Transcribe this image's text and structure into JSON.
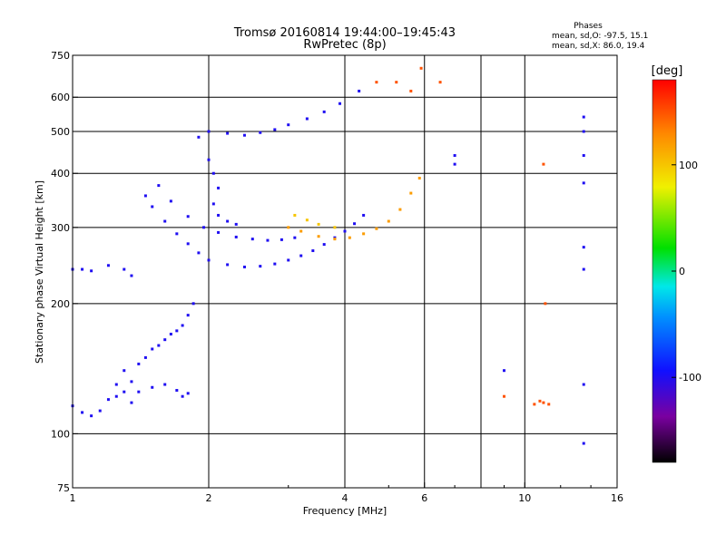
{
  "title": {
    "line1": "Tromsø 20160814 19:44:00–19:45:43",
    "line2": "RwPretec (8p)"
  },
  "stats": {
    "heading": "Phases",
    "o_line": "mean, sd,O: -97.5, 15.1",
    "x_line": "mean, sd,X:  86.0, 19.4"
  },
  "colorbar": {
    "label": "[deg]",
    "range": [
      -180,
      180
    ],
    "tick_labels": [
      "100",
      "0",
      "-100"
    ],
    "tick_values": [
      100,
      0,
      -100
    ]
  },
  "chart_data": {
    "type": "scatter",
    "xlabel": "Frequency [MHz]",
    "ylabel": "Stationary phase Virtual Height [km]",
    "xscale": "log",
    "yscale": "log",
    "xlim": [
      1,
      16
    ],
    "ylim": [
      75,
      750
    ],
    "x_ticks": [
      1,
      2,
      4,
      6,
      10,
      16
    ],
    "x_tick_labels": [
      "1",
      "2",
      "4",
      "6",
      "10",
      "16"
    ],
    "x_gridlines": [
      2,
      4,
      6,
      8,
      10
    ],
    "y_ticks": [
      75,
      100,
      200,
      300,
      400,
      500,
      600,
      750
    ],
    "y_tick_labels": [
      "75",
      "100",
      "200",
      "300",
      "400",
      "500",
      "600",
      "750"
    ],
    "y_gridlines": [
      100,
      200,
      300,
      400,
      500,
      600
    ],
    "grid": true,
    "color_encodes": "phase [deg]",
    "series": [
      {
        "phase": -100,
        "points": [
          [
            1.0,
            240
          ],
          [
            1.05,
            240
          ],
          [
            1.1,
            238
          ],
          [
            1.2,
            245
          ],
          [
            1.3,
            240
          ],
          [
            1.35,
            232
          ]
        ]
      },
      {
        "phase": -100,
        "points": [
          [
            1.0,
            116
          ],
          [
            1.05,
            112
          ],
          [
            1.1,
            110
          ],
          [
            1.15,
            113
          ],
          [
            1.2,
            120
          ],
          [
            1.25,
            130
          ],
          [
            1.3,
            140
          ],
          [
            1.35,
            132
          ],
          [
            1.4,
            145
          ],
          [
            1.45,
            150
          ],
          [
            1.5,
            157
          ],
          [
            1.55,
            160
          ],
          [
            1.6,
            165
          ],
          [
            1.65,
            170
          ],
          [
            1.7,
            173
          ],
          [
            1.75,
            178
          ],
          [
            1.8,
            188
          ],
          [
            1.85,
            200
          ]
        ]
      },
      {
        "phase": -100,
        "points": [
          [
            1.25,
            122
          ],
          [
            1.3,
            125
          ],
          [
            1.35,
            118
          ],
          [
            1.4,
            125
          ],
          [
            1.5,
            128
          ],
          [
            1.6,
            130
          ],
          [
            1.7,
            126
          ],
          [
            1.75,
            122
          ],
          [
            1.8,
            124
          ]
        ]
      },
      {
        "phase": -100,
        "points": [
          [
            1.45,
            355
          ],
          [
            1.5,
            335
          ],
          [
            1.6,
            310
          ],
          [
            1.7,
            290
          ],
          [
            1.8,
            275
          ],
          [
            1.9,
            262
          ],
          [
            2.0,
            252
          ],
          [
            2.2,
            246
          ],
          [
            2.4,
            243
          ],
          [
            2.6,
            244
          ],
          [
            2.8,
            247
          ],
          [
            3.0,
            252
          ],
          [
            3.2,
            258
          ],
          [
            3.4,
            265
          ],
          [
            3.6,
            274
          ],
          [
            3.8,
            284
          ],
          [
            4.0,
            294
          ],
          [
            4.2,
            306
          ],
          [
            4.4,
            320
          ]
        ]
      },
      {
        "phase": -100,
        "points": [
          [
            1.55,
            375
          ],
          [
            1.65,
            345
          ],
          [
            1.8,
            318
          ],
          [
            1.95,
            300
          ],
          [
            2.1,
            292
          ],
          [
            2.3,
            285
          ],
          [
            2.5,
            282
          ],
          [
            2.7,
            280
          ],
          [
            2.9,
            281
          ],
          [
            3.1,
            284
          ]
        ]
      },
      {
        "phase": -100,
        "points": [
          [
            1.9,
            485
          ],
          [
            2.0,
            500
          ],
          [
            2.2,
            495
          ],
          [
            2.4,
            490
          ],
          [
            2.6,
            497
          ],
          [
            2.8,
            505
          ],
          [
            3.0,
            518
          ],
          [
            3.3,
            535
          ],
          [
            3.6,
            555
          ],
          [
            3.9,
            580
          ],
          [
            4.3,
            620
          ]
        ]
      },
      {
        "phase": -100,
        "points": [
          [
            2.0,
            430
          ],
          [
            2.05,
            400
          ],
          [
            2.1,
            370
          ],
          [
            2.05,
            340
          ],
          [
            2.1,
            320
          ],
          [
            2.2,
            310
          ],
          [
            2.3,
            305
          ]
        ]
      },
      {
        "phase": 120,
        "points": [
          [
            3.0,
            300
          ],
          [
            3.2,
            294
          ],
          [
            3.5,
            286
          ],
          [
            3.8,
            282
          ],
          [
            4.1,
            284
          ],
          [
            4.4,
            290
          ],
          [
            4.7,
            298
          ],
          [
            5.0,
            310
          ],
          [
            5.3,
            330
          ],
          [
            5.6,
            360
          ],
          [
            5.85,
            390
          ]
        ]
      },
      {
        "phase": 100,
        "points": [
          [
            3.1,
            320
          ],
          [
            3.3,
            312
          ],
          [
            3.5,
            305
          ],
          [
            3.8,
            300
          ]
        ]
      },
      {
        "phase": 150,
        "points": [
          [
            4.7,
            650
          ],
          [
            5.2,
            650
          ],
          [
            5.6,
            620
          ],
          [
            5.9,
            700
          ],
          [
            6.5,
            650
          ]
        ]
      },
      {
        "phase": -100,
        "points": [
          [
            7.0,
            420
          ],
          [
            7.0,
            440
          ],
          [
            9.0,
            140
          ],
          [
            13.5,
            540
          ],
          [
            13.5,
            500
          ],
          [
            13.5,
            440
          ],
          [
            13.5,
            380
          ],
          [
            13.5,
            270
          ],
          [
            13.5,
            240
          ],
          [
            13.5,
            130
          ],
          [
            13.5,
            95
          ]
        ]
      },
      {
        "phase": 150,
        "points": [
          [
            10.5,
            117
          ],
          [
            10.8,
            119
          ],
          [
            11.0,
            118
          ],
          [
            11.3,
            117
          ],
          [
            11.0,
            420
          ],
          [
            11.1,
            200
          ],
          [
            9.0,
            122
          ]
        ]
      }
    ]
  }
}
